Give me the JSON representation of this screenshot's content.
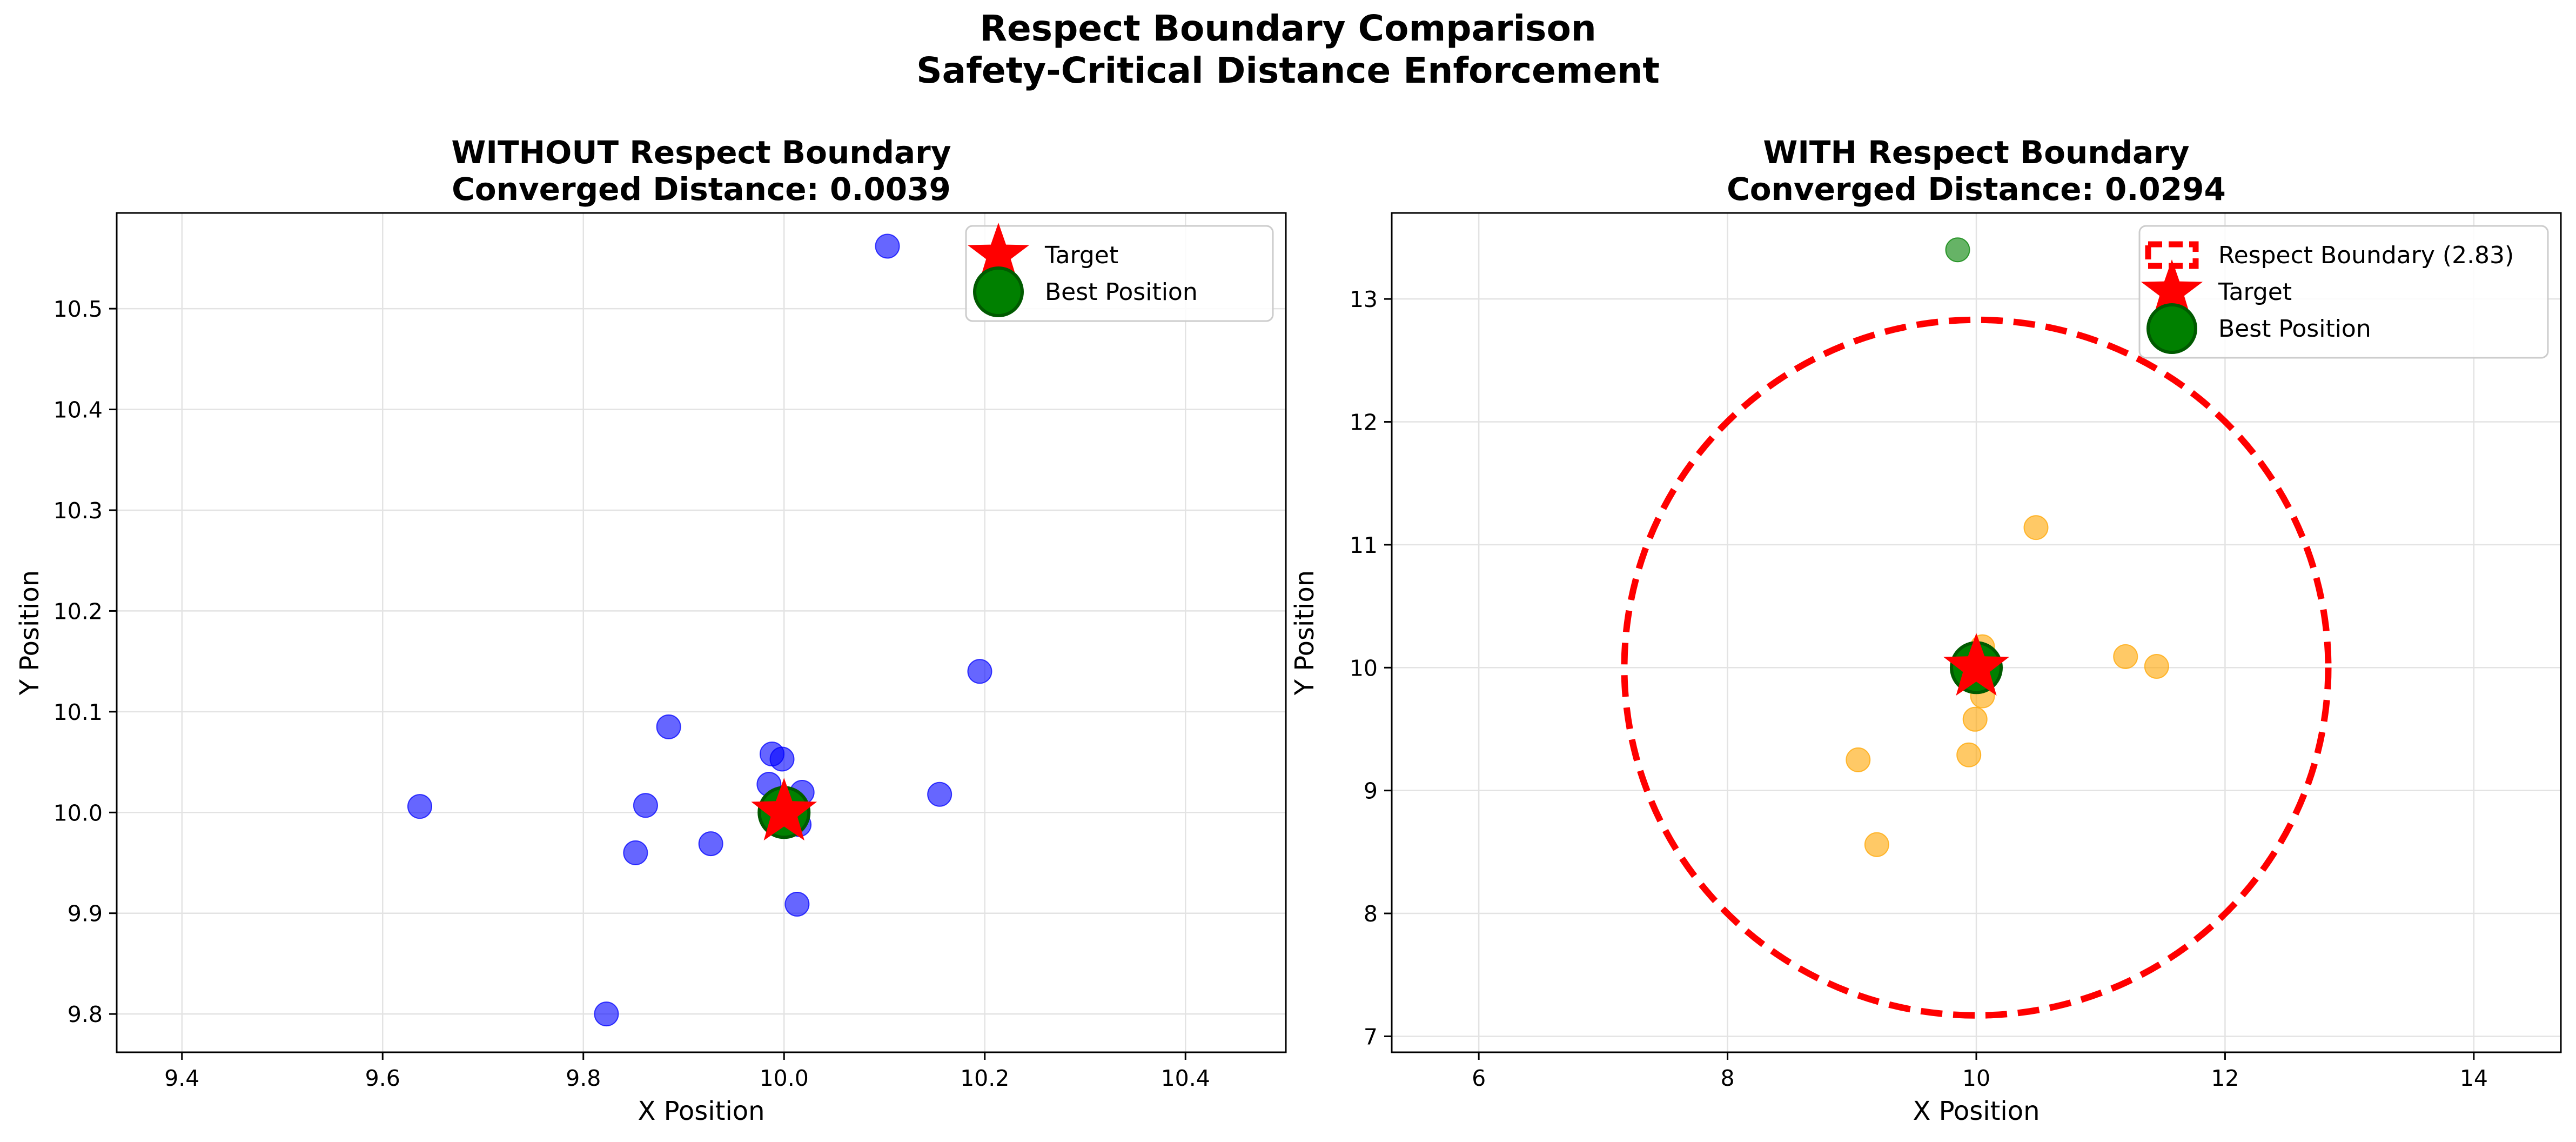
{
  "figure": {
    "title_line1": "Respect Boundary Comparison",
    "title_line2": "Safety-Critical Distance Enforcement"
  },
  "chart_data": [
    {
      "type": "scatter",
      "title_line1": "WITHOUT Respect Boundary",
      "title_line2": "Converged Distance: 0.0039",
      "xlabel": "X Position",
      "ylabel": "Y Position",
      "xlim": [
        9.335,
        10.5
      ],
      "ylim": [
        9.762,
        10.595
      ],
      "xticks": [
        "9.4",
        "9.6",
        "9.8",
        "10.0",
        "10.2",
        "10.4"
      ],
      "yticks": [
        "9.8",
        "9.9",
        "10.0",
        "10.1",
        "10.2",
        "10.3",
        "10.4",
        "10.5"
      ],
      "grid": true,
      "legend_position": "top-right",
      "particle_color": "#0000ff",
      "particles": [
        {
          "x": 10.103,
          "y": 10.562
        },
        {
          "x": 10.195,
          "y": 10.14
        },
        {
          "x": 9.885,
          "y": 10.085
        },
        {
          "x": 9.988,
          "y": 10.058
        },
        {
          "x": 9.998,
          "y": 10.053
        },
        {
          "x": 9.985,
          "y": 10.028
        },
        {
          "x": 10.018,
          "y": 10.02
        },
        {
          "x": 10.155,
          "y": 10.018
        },
        {
          "x": 9.637,
          "y": 10.006
        },
        {
          "x": 9.862,
          "y": 10.007
        },
        {
          "x": 10.015,
          "y": 9.988
        },
        {
          "x": 9.927,
          "y": 9.969
        },
        {
          "x": 9.852,
          "y": 9.96
        },
        {
          "x": 10.013,
          "y": 9.909
        },
        {
          "x": 9.823,
          "y": 9.8
        }
      ],
      "best_position": {
        "x": 10.0,
        "y": 10.0,
        "label": "Best Position",
        "color": "#008000"
      },
      "target": {
        "x": 10.0,
        "y": 10.0,
        "label": "Target",
        "color": "#ff0000"
      }
    },
    {
      "type": "scatter",
      "title_line1": "WITH Respect Boundary",
      "title_line2": "Converged Distance: 0.0294",
      "xlabel": "X Position",
      "ylabel": "Y Position",
      "xlim": [
        5.3,
        14.7
      ],
      "ylim": [
        6.87,
        13.7
      ],
      "xticks": [
        "6",
        "8",
        "10",
        "12",
        "14"
      ],
      "yticks": [
        "7",
        "8",
        "9",
        "10",
        "11",
        "12",
        "13"
      ],
      "grid": true,
      "legend_position": "top-right",
      "particle_color": "#ffa500",
      "boundary": {
        "center_x": 10.0,
        "center_y": 10.0,
        "radius": 2.83,
        "label": "Respect Boundary (2.83)",
        "color": "#ff0000"
      },
      "outside_particle": {
        "x": 9.85,
        "y": 13.4,
        "color": "#008000"
      },
      "particles": [
        {
          "x": 10.48,
          "y": 11.14
        },
        {
          "x": 10.05,
          "y": 10.17
        },
        {
          "x": 9.97,
          "y": 10.1
        },
        {
          "x": 11.2,
          "y": 10.09
        },
        {
          "x": 11.45,
          "y": 10.01
        },
        {
          "x": 10.05,
          "y": 9.77
        },
        {
          "x": 9.99,
          "y": 9.58
        },
        {
          "x": 9.94,
          "y": 9.29
        },
        {
          "x": 9.05,
          "y": 9.25
        },
        {
          "x": 9.2,
          "y": 8.56
        }
      ],
      "best_position": {
        "x": 10.0,
        "y": 10.0,
        "label": "Best Position",
        "color": "#008000"
      },
      "target": {
        "x": 10.0,
        "y": 10.0,
        "label": "Target",
        "color": "#ff0000"
      }
    }
  ]
}
